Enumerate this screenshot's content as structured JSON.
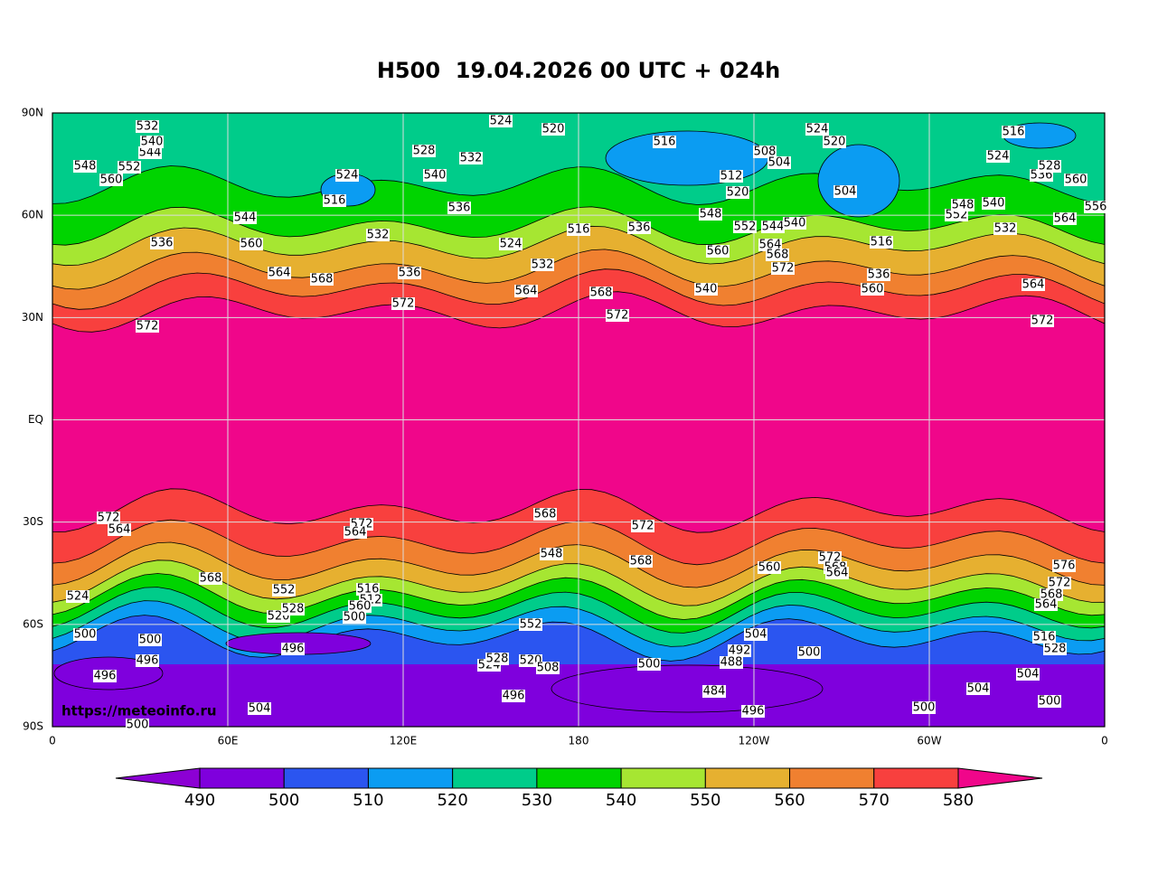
{
  "map": {
    "title": "H500  19.04.2026 00 UTC + 024h",
    "url": "https://meteoinfo.ru",
    "lat_ticks": [
      "90N",
      "60N",
      "30N",
      "EQ",
      "30S",
      "60S",
      "90S"
    ],
    "lon_ticks": [
      "0",
      "60E",
      "120E",
      "180",
      "120W",
      "60W",
      "0"
    ],
    "colorbar": {
      "levels": [
        490,
        500,
        510,
        520,
        530,
        540,
        550,
        560,
        570,
        580
      ],
      "colors": [
        "#8c00d4",
        "#7f00dd",
        "#2b55f0",
        "#0b9cf2",
        "#00cc8a",
        "#00d400",
        "#a6e632",
        "#e6b030",
        "#f08030",
        "#f8403e",
        "#f0068a"
      ]
    },
    "contour_labels": [
      532,
      524,
      520,
      516,
      548,
      560,
      552,
      544,
      540,
      524,
      516,
      528,
      532,
      540,
      536,
      544,
      560,
      536,
      564,
      568,
      572,
      532,
      536,
      524,
      532,
      564,
      516,
      536,
      568,
      572,
      548,
      560,
      540,
      552,
      544,
      540,
      564,
      568,
      572,
      524,
      520,
      508,
      504,
      512,
      520,
      504,
      516,
      560,
      536,
      516,
      524,
      536,
      528,
      560,
      564,
      556,
      532,
      552,
      548,
      540,
      564,
      572,
      572,
      572,
      564,
      568,
      572,
      564,
      568,
      548,
      572,
      568,
      560,
      572,
      568,
      564,
      576,
      572,
      568,
      564,
      524,
      500,
      496,
      500,
      496,
      552,
      520,
      528,
      516,
      512,
      560,
      500,
      496,
      552,
      524,
      528,
      520,
      508,
      500,
      492,
      488,
      504,
      500,
      484,
      496,
      496,
      504,
      500,
      500,
      504,
      500,
      504,
      528,
      516
    ]
  }
}
